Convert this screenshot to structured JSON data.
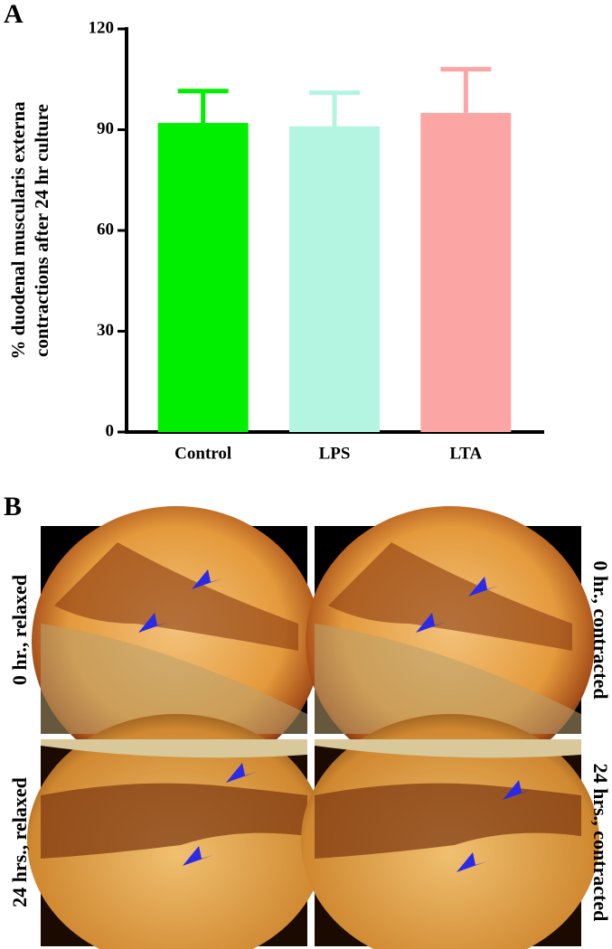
{
  "panels": {
    "a": "A",
    "b": "B"
  },
  "chart_data": {
    "type": "bar",
    "ylabel": [
      "% duodenal muscularis externa",
      "contractions after 24 hr culture"
    ],
    "categories": [
      "Control",
      "LPS",
      "LTA"
    ],
    "values": [
      92,
      91,
      95
    ],
    "errors": [
      9.5,
      10,
      13
    ],
    "colors": [
      "#00ee00",
      "#b3f5e0",
      "#fca5a5"
    ],
    "ylim": [
      0,
      120
    ],
    "yticks": [
      0,
      30,
      60,
      90,
      120
    ]
  },
  "images": {
    "labels": [
      "0 hr., relaxed",
      "0 hr., contracted",
      "24 hrs., relaxed",
      "24 hrs., contracted"
    ]
  }
}
